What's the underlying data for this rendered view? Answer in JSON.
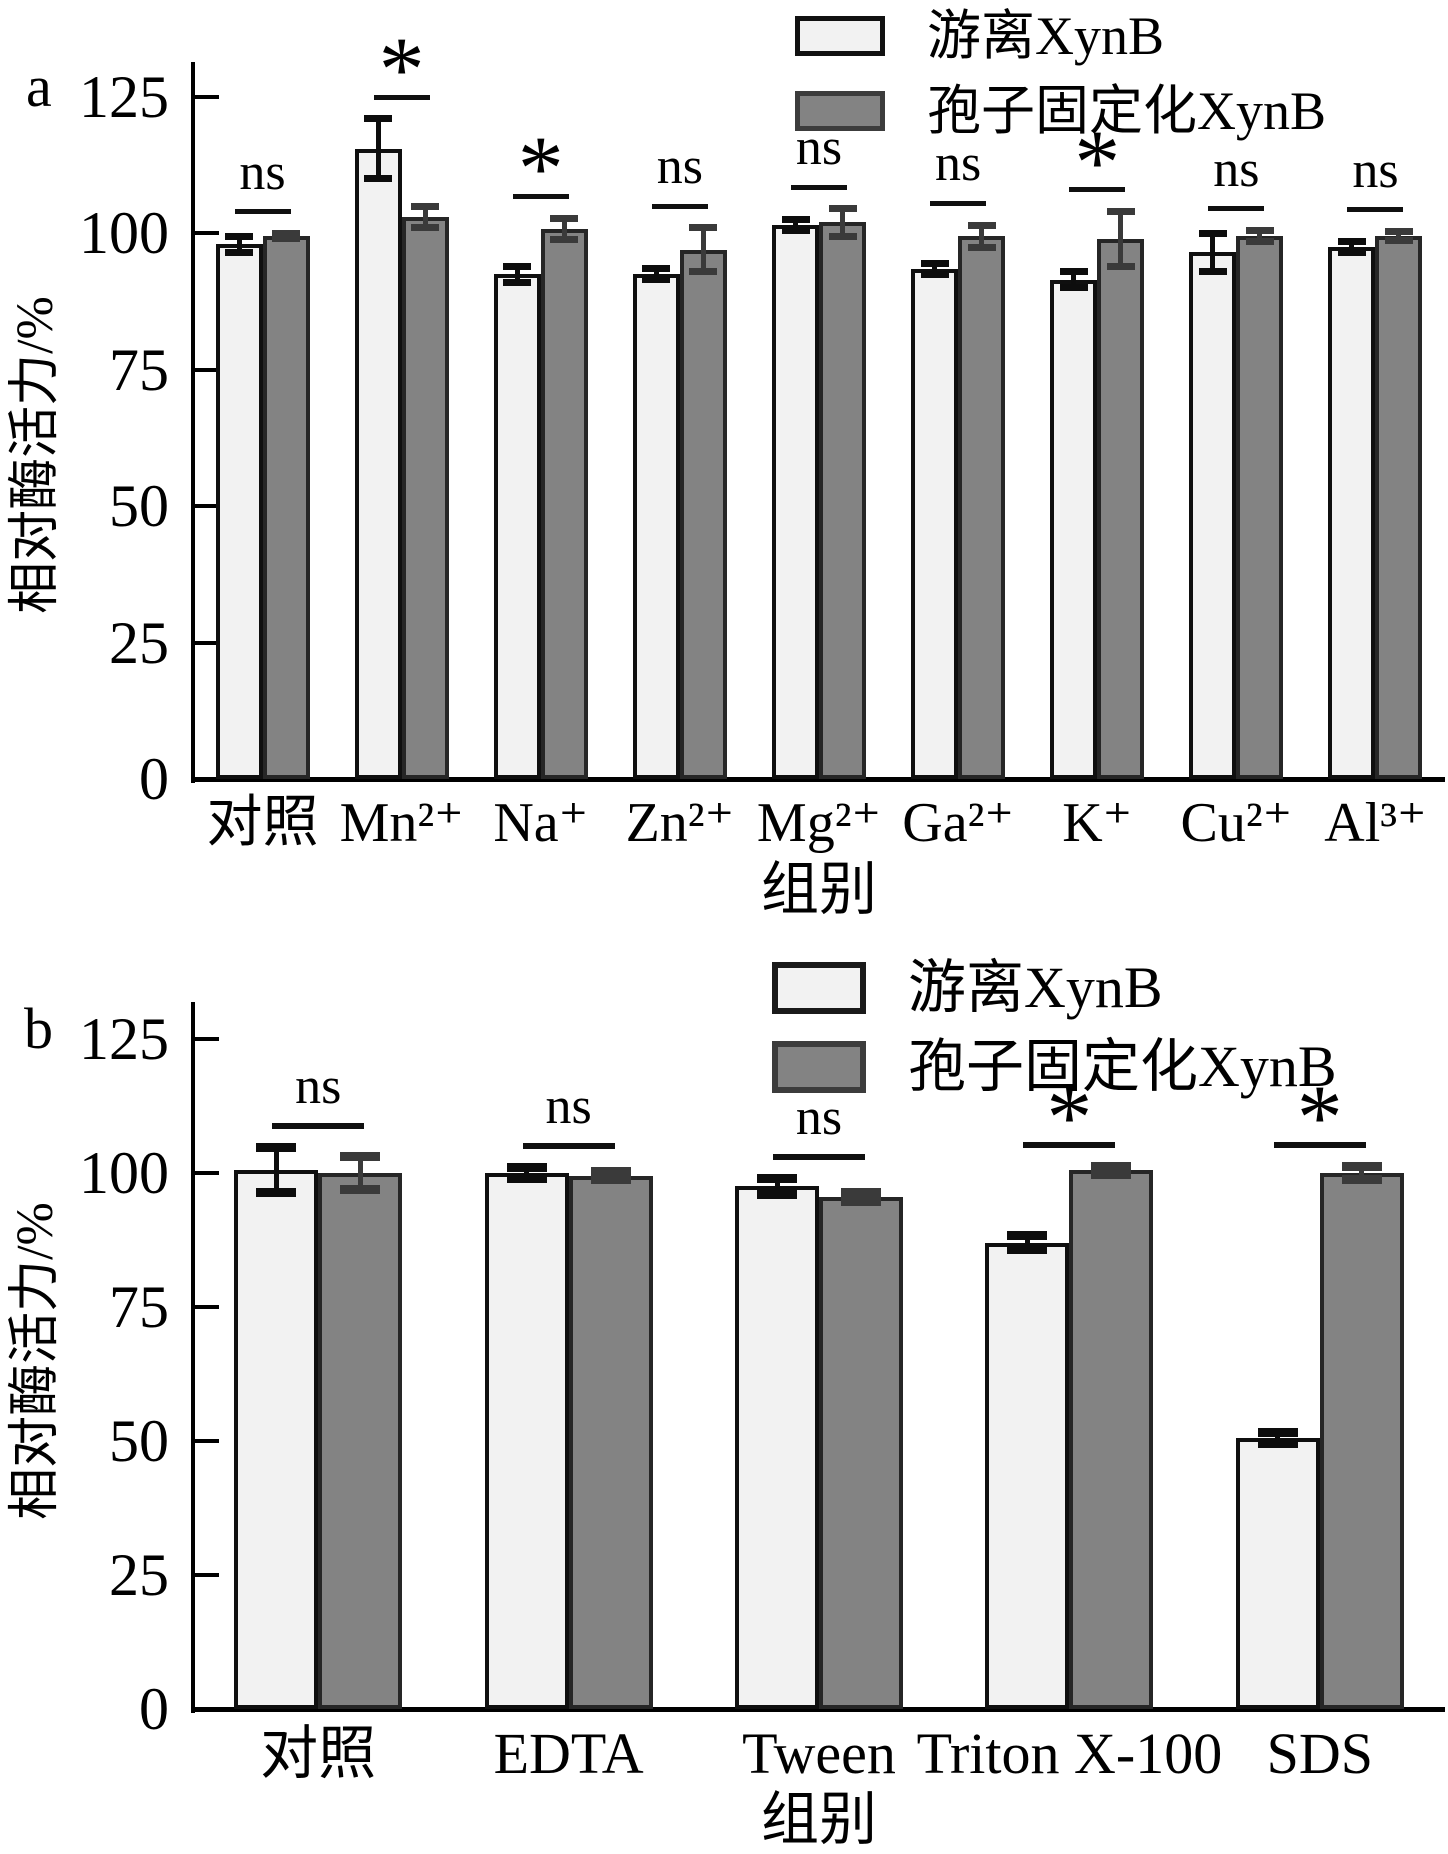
{
  "figure": {
    "panels": [
      {
        "letter": "a"
      },
      {
        "letter": "b"
      }
    ]
  },
  "colors": {
    "free_fill": "#f2f2f2",
    "free_border": "#0f0f0f",
    "free_error": "#0d0d0d",
    "immobilized_fill": "#838383",
    "immobilized_border": "#262626",
    "immobilized_error": "#3a3a3a",
    "axis": "#000000",
    "background": "#ffffff"
  },
  "chart_data": [
    {
      "type": "bar",
      "panel": "a",
      "title": "",
      "categories": [
        "对照",
        "Mn²⁺",
        "Na⁺",
        "Zn²⁺",
        "Mg²⁺",
        "Ga²⁺",
        "K⁺",
        "Cu²⁺",
        "Al³⁺"
      ],
      "series": [
        {
          "name": "游离XynB",
          "values": [
            98,
            115.5,
            92.5,
            92.5,
            101.5,
            93.5,
            91.5,
            96.5,
            97.5
          ],
          "errors": [
            1.5,
            5.5,
            1.5,
            1,
            1,
            1,
            1.5,
            3.5,
            1
          ]
        },
        {
          "name": "孢子固定化XynB",
          "values": [
            99.5,
            103,
            100.8,
            97,
            102,
            99.5,
            99,
            99.5,
            99.5
          ],
          "errors": [
            0.5,
            2,
            2,
            4,
            2.5,
            2,
            5,
            1,
            0.8
          ]
        }
      ],
      "significance": [
        "ns",
        "*",
        "*",
        "ns",
        "ns",
        "ns",
        "*",
        "ns",
        "ns"
      ],
      "ylabel": "相对酶活力/%",
      "xlabel": "组别",
      "ylim": [
        0,
        130
      ],
      "yticks": [
        0,
        25,
        50,
        75,
        100,
        125
      ],
      "grid": false,
      "legend_position": "top-right",
      "error_bars": true
    },
    {
      "type": "bar",
      "panel": "b",
      "title": "",
      "categories": [
        "对照",
        "EDTA",
        "Tween",
        "Triton X-100",
        "SDS"
      ],
      "series": [
        {
          "name": "游离XynB",
          "values": [
            100.5,
            100,
            97.5,
            87,
            50.5
          ],
          "errors": [
            4.2,
            1,
            1.5,
            1.3,
            1
          ]
        },
        {
          "name": "孢子固定化XynB",
          "values": [
            100,
            99.5,
            95.5,
            100.5,
            100
          ],
          "errors": [
            3,
            0.8,
            0.8,
            0.8,
            1.3
          ]
        }
      ],
      "significance": [
        "ns",
        "ns",
        "ns",
        "*",
        "*"
      ],
      "ylabel": "相对酶活力/%",
      "xlabel": "组别",
      "ylim": [
        0,
        130
      ],
      "yticks": [
        0,
        25,
        50,
        75,
        100,
        125
      ],
      "grid": false,
      "legend_position": "top-right",
      "error_bars": true
    }
  ]
}
